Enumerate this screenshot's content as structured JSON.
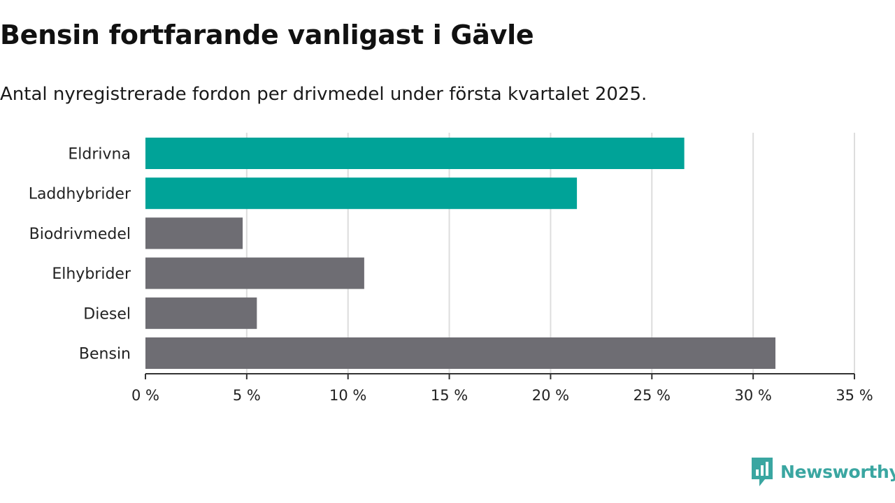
{
  "title": "Bensin fortfarande vanligast i Gävle",
  "subtitle": "Antal nyregistrerade fordon per drivmedel under första kvartalet 2025.",
  "brand": {
    "name": "Newsworthy",
    "color": "#3aa6a1",
    "icon": "chart-bubble-icon"
  },
  "chart_data": {
    "type": "bar",
    "orientation": "horizontal",
    "categories": [
      "Eldrivna",
      "Laddhybrider",
      "Biodrivmedel",
      "Elhybrider",
      "Diesel",
      "Bensin"
    ],
    "values": [
      26.6,
      21.3,
      4.8,
      10.8,
      5.5,
      31.1
    ],
    "colors": [
      "#00a398",
      "#00a398",
      "#6e6d73",
      "#6e6d73",
      "#6e6d73",
      "#6e6d73"
    ],
    "xlim": [
      0,
      35
    ],
    "xticks": [
      0,
      5,
      10,
      15,
      20,
      25,
      30,
      35
    ],
    "xtick_labels": [
      "0 %",
      "5 %",
      "10 %",
      "15 %",
      "20 %",
      "25 %",
      "30 %",
      "35 %"
    ],
    "grid": "vertical",
    "gridColor": "#dddddd",
    "axisColor": "#333333"
  }
}
